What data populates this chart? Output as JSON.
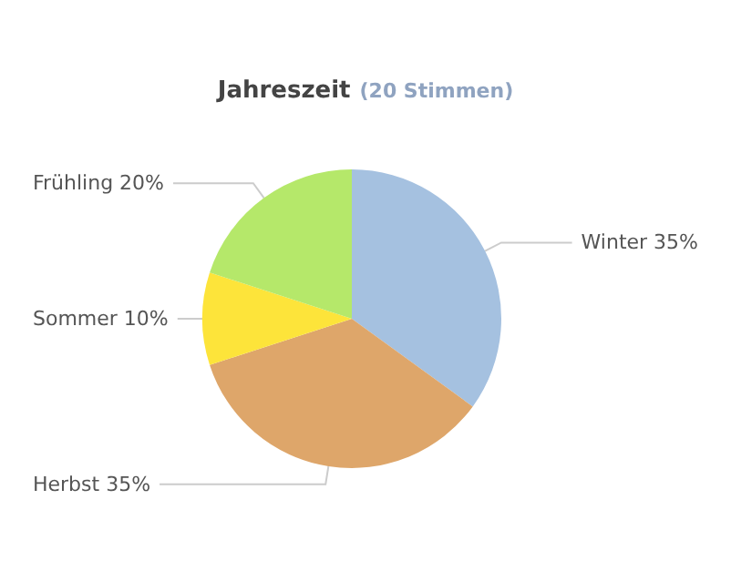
{
  "chart_data": {
    "type": "pie",
    "title": "Jahreszeit",
    "subtitle": "(20 Stimmen)",
    "categories": [
      "Winter",
      "Herbst",
      "Sommer",
      "Frühling"
    ],
    "values": [
      35,
      35,
      10,
      20
    ],
    "value_labels": [
      "35%",
      "35%",
      "10%",
      "20%"
    ],
    "colors": [
      "#a5c1e0",
      "#dea66a",
      "#fde43a",
      "#b5e86a"
    ],
    "legend": false
  }
}
